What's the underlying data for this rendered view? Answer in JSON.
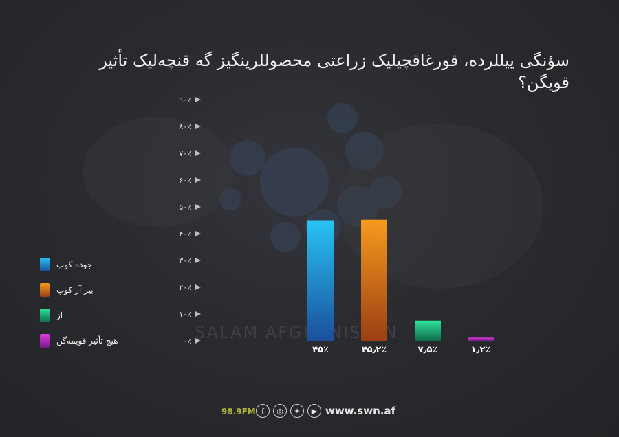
{
  "title": "سؤنگی ییللرده، قورغاقچیلیک زراعتی محصوللرینگیز گه قنچه‌لیک تأثیر قویگن؟",
  "chart_data": {
    "type": "bar",
    "categories": [
      "جوده کوپ",
      "بیر آز کوپ",
      "آز",
      "هیچ تأثیر قویمه‌گن"
    ],
    "values": [
      45,
      45.2,
      7.5,
      1.2
    ],
    "value_labels": [
      "۴۵٪",
      "۴۵٫۲٪",
      "۷٫۵٪",
      "۱٫۲٪"
    ],
    "y_ticks": [
      {
        "value": 0,
        "label": "٠٪"
      },
      {
        "value": 10,
        "label": "۱٠٪"
      },
      {
        "value": 20,
        "label": "۲٠٪"
      },
      {
        "value": 30,
        "label": "۳٠٪"
      },
      {
        "value": 40,
        "label": "۴٠٪"
      },
      {
        "value": 50,
        "label": "۵٠٪"
      },
      {
        "value": 60,
        "label": "۶٠٪"
      },
      {
        "value": 70,
        "label": "۷٠٪"
      },
      {
        "value": 80,
        "label": "۸٠٪"
      },
      {
        "value": 90,
        "label": "۹٠٪"
      }
    ],
    "ylim": [
      0,
      90
    ],
    "grid": false,
    "legend_position": "left",
    "colors": [
      {
        "top": "#29c3f5",
        "bottom": "#1a4f9c"
      },
      {
        "top": "#f79a1e",
        "bottom": "#9a3f14"
      },
      {
        "top": "#2fe39a",
        "bottom": "#0f6b4a"
      },
      {
        "top": "#e23be2",
        "bottom": "#7a1a8a"
      }
    ]
  },
  "footer": {
    "frequency": "98.9FM",
    "icons": [
      "facebook-icon",
      "instagram-icon",
      "twitter-icon",
      "youtube-icon"
    ],
    "website": "www.swn.af"
  },
  "watermark": {
    "text": "SALAM AFGHANISTAN"
  }
}
